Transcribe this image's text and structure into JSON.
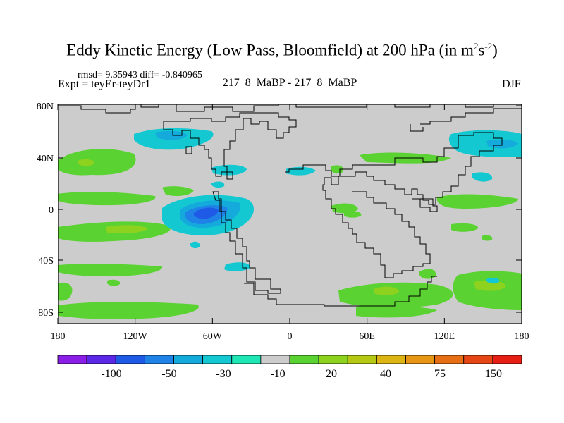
{
  "title": {
    "main": "Eddy Kinetic Energy (Low Pass, Bloomfield) at 200 hPa (in m",
    "sup1": "2",
    "mid": "s",
    "sup2": "-2",
    "close": ")"
  },
  "subtitle": "rmsd= 9.35943 diff= -0.840965",
  "expt": "Expt = teyEr-teyDr1",
  "center_label": "217_8_MaBP - 217_8_MaBP",
  "season": "DJF",
  "axes": {
    "lat_labels": [
      "80N",
      "40N",
      "0",
      "40S",
      "80S"
    ],
    "lon_labels": [
      "180",
      "120W",
      "60W",
      "0",
      "60E",
      "120E",
      "180"
    ]
  },
  "colorbar": {
    "colors": [
      "#8a1ee6",
      "#5a28e6",
      "#1e5ae6",
      "#1e82e6",
      "#14aadc",
      "#14c8d2",
      "#1ee6b4",
      "#cccccc",
      "#5ad232",
      "#8cd21e",
      "#b4c814",
      "#dcb414",
      "#e69614",
      "#e66e14",
      "#e64614",
      "#e61e14"
    ],
    "labels": [
      "-100",
      "-50",
      "-30",
      "-10",
      "20",
      "40",
      "75",
      "150"
    ]
  },
  "colors": {
    "background_field": "#cccccc",
    "light_green": "#5ad232",
    "mid_green": "#8cd21e",
    "cyan": "#14c8d2",
    "light_blue": "#14aadc",
    "blue": "#1e82e6",
    "dark_blue": "#1e5ae6"
  }
}
